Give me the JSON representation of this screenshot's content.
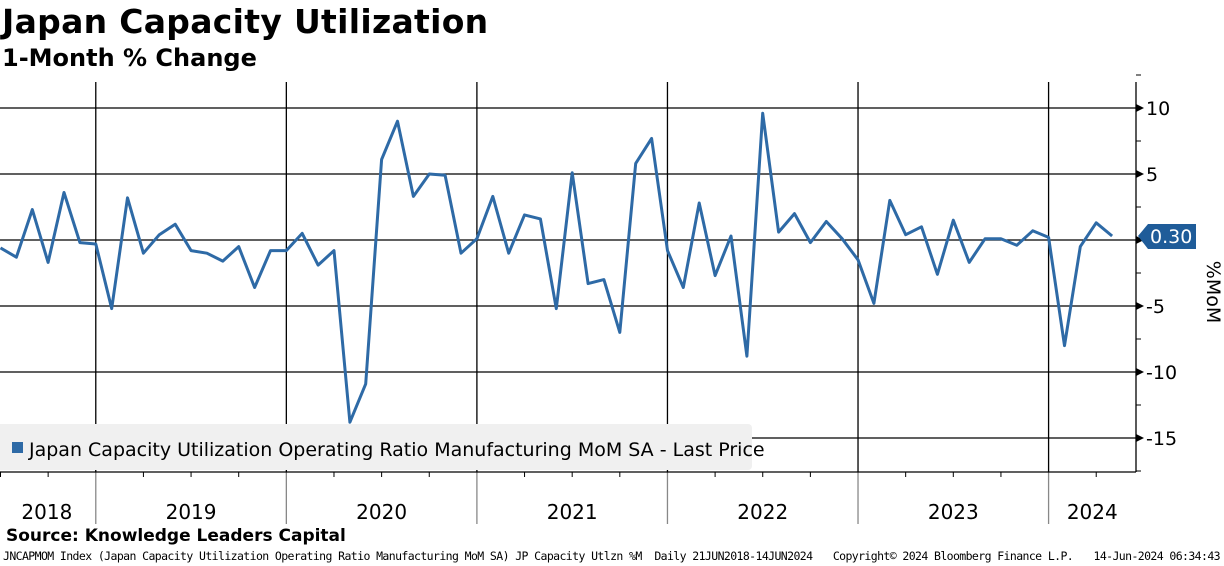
{
  "chart_data": {
    "type": "line",
    "title": "Japan Capacity Utilization",
    "subtitle": "1-Month % Change",
    "ylabel": "%MoM",
    "xlabel": "",
    "ylim": [
      -17.5,
      12.5
    ],
    "yticks": [
      10,
      5,
      0,
      -5,
      -10,
      -15
    ],
    "x_start": "2018-07",
    "x_frequency": "monthly",
    "year_labels": [
      "2018",
      "2019",
      "2020",
      "2021",
      "2022",
      "2023",
      "2024"
    ],
    "legend_placement": "bottom-left",
    "grid": true,
    "series": [
      {
        "name": "Japan Capacity Utilization Operating Ratio Manufacturing MoM SA - Last Price",
        "color": "#2e6aa6",
        "last_value_label": "0.30",
        "values": [
          -0.6,
          -1.3,
          2.3,
          -1.7,
          3.6,
          -0.2,
          -0.3,
          -5.2,
          3.2,
          -1.0,
          0.4,
          1.2,
          -0.8,
          -1.0,
          -1.6,
          -0.5,
          -3.6,
          -0.8,
          -0.8,
          0.5,
          -1.9,
          -0.8,
          -13.8,
          -10.9,
          6.1,
          9.0,
          3.3,
          5.0,
          4.9,
          -1.0,
          0.1,
          3.3,
          -1.0,
          1.9,
          1.6,
          -5.2,
          5.1,
          -3.3,
          -3.0,
          -7.0,
          5.8,
          7.7,
          -0.8,
          -3.6,
          2.8,
          -2.7,
          0.3,
          -8.8,
          9.6,
          0.6,
          2.0,
          -0.2,
          1.4,
          0.1,
          -1.5,
          -4.8,
          3.0,
          0.4,
          1.0,
          -2.6,
          1.5,
          -1.7,
          0.1,
          0.1,
          -0.4,
          0.7,
          0.2,
          -8.0,
          -0.5,
          1.3,
          0.3
        ]
      }
    ]
  },
  "source": "Source: Knowledge Leaders Capital",
  "footer": {
    "description": "JNCAPMOM Index (Japan Capacity Utilization Operating Ratio Manufacturing MoM SA) JP Capacity Utlzn %M  Daily 21JUN2018-14JUN2024",
    "copyright": "Copyright© 2024 Bloomberg Finance L.P.",
    "timestamp": "14-Jun-2024 06:34:43"
  }
}
